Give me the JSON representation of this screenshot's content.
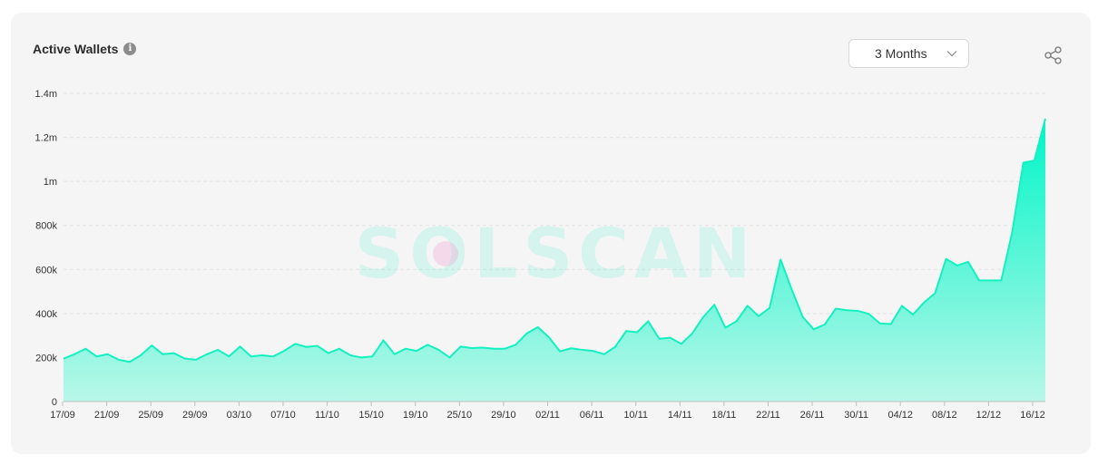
{
  "header": {
    "title": "Active Wallets",
    "info_icon": "info-icon",
    "range_select": "3 Months",
    "share_icon": "share-icon"
  },
  "watermark": "SOLSCAN",
  "colors": {
    "line": "#14f1c0",
    "area_top": "#00f5c8",
    "area_bottom": "#b8f7e8",
    "card_bg": "#f5f5f5",
    "grid": "#e3e3e3"
  },
  "chart_data": {
    "type": "area",
    "title": "Active Wallets",
    "xlabel": "",
    "ylabel": "",
    "ylim": [
      0,
      1400000
    ],
    "yticks": [
      {
        "value": 0,
        "label": "0"
      },
      {
        "value": 200000,
        "label": "200k"
      },
      {
        "value": 400000,
        "label": "400k"
      },
      {
        "value": 600000,
        "label": "600k"
      },
      {
        "value": 800000,
        "label": "800k"
      },
      {
        "value": 1000000,
        "label": "1m"
      },
      {
        "value": 1200000,
        "label": "1.2m"
      },
      {
        "value": 1400000,
        "label": "1.4m"
      }
    ],
    "grid": true,
    "xtick_labels": [
      "17/09",
      "21/09",
      "25/09",
      "29/09",
      "03/10",
      "07/10",
      "11/10",
      "15/10",
      "19/10",
      "25/10",
      "29/10",
      "02/11",
      "06/11",
      "10/11",
      "14/11",
      "18/11",
      "22/11",
      "26/11",
      "30/11",
      "04/12",
      "08/12",
      "12/12",
      "16/12"
    ],
    "values": [
      195000,
      215000,
      240000,
      205000,
      215000,
      190000,
      180000,
      210000,
      255000,
      215000,
      220000,
      195000,
      190000,
      215000,
      235000,
      205000,
      250000,
      205000,
      210000,
      205000,
      230000,
      262000,
      248000,
      253000,
      220000,
      240000,
      210000,
      200000,
      205000,
      278000,
      215000,
      240000,
      230000,
      258000,
      235000,
      200000,
      250000,
      243000,
      245000,
      240000,
      240000,
      258000,
      310000,
      338000,
      292000,
      228000,
      242000,
      235000,
      230000,
      215000,
      248000,
      320000,
      315000,
      365000,
      285000,
      290000,
      262000,
      310000,
      385000,
      440000,
      335000,
      365000,
      435000,
      388000,
      425000,
      645000,
      510000,
      385000,
      328000,
      350000,
      422000,
      415000,
      412000,
      398000,
      355000,
      352000,
      435000,
      395000,
      450000,
      492000,
      648000,
      618000,
      635000,
      550000,
      550000,
      550000,
      770000,
      1085000,
      1095000,
      1285000
    ]
  }
}
